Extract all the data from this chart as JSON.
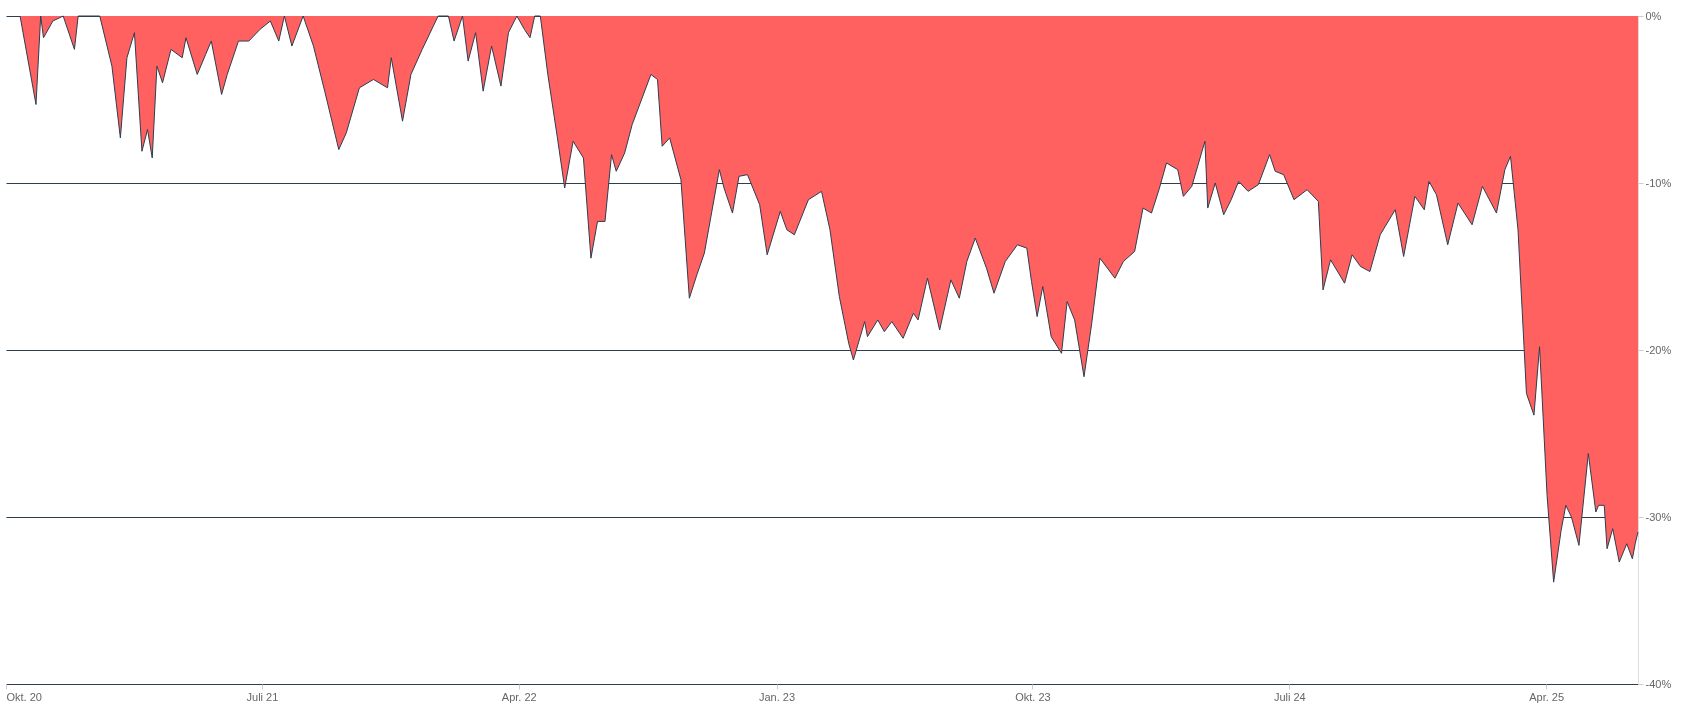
{
  "chart_data": {
    "type": "area",
    "xlim": [
      "2020-10-01",
      "2025-07-08"
    ],
    "ylim": [
      -40,
      0
    ],
    "xticks": [
      {
        "value": "2020-10-01",
        "label": "Okt. 20"
      },
      {
        "value": "2021-07-01",
        "label": "Juli 21"
      },
      {
        "value": "2022-04-01",
        "label": "Apr. 22"
      },
      {
        "value": "2023-01-01",
        "label": "Jan. 23"
      },
      {
        "value": "2023-10-01",
        "label": "Okt. 23"
      },
      {
        "value": "2024-07-01",
        "label": "Juli 24"
      },
      {
        "value": "2025-04-01",
        "label": "Apr. 25"
      }
    ],
    "yticks": [
      {
        "value": 0,
        "label": "0%"
      },
      {
        "value": -10,
        "label": "-10%"
      },
      {
        "value": -20,
        "label": "-20%"
      },
      {
        "value": -30,
        "label": "-30%"
      },
      {
        "value": -40,
        "label": "-40%"
      }
    ],
    "grid": "y",
    "legend": false,
    "x": [
      "2020-10-16",
      "2020-11-02",
      "2020-11-07",
      "2020-11-10",
      "2020-11-20",
      "2020-12-01",
      "2020-12-13",
      "2020-12-17",
      "2021-01-09",
      "2021-01-22",
      "2021-01-31",
      "2021-02-07",
      "2021-02-15",
      "2021-02-23",
      "2021-03-01",
      "2021-03-06",
      "2021-03-11",
      "2021-03-17",
      "2021-03-26",
      "2021-04-07",
      "2021-04-11",
      "2021-04-23",
      "2021-05-02",
      "2021-05-08",
      "2021-05-19",
      "2021-05-25",
      "2021-06-06",
      "2021-06-17",
      "2021-06-29",
      "2021-07-10",
      "2021-07-19",
      "2021-07-25",
      "2021-08-02",
      "2021-08-14",
      "2021-08-25",
      "2021-09-06",
      "2021-09-21",
      "2021-09-29",
      "2021-10-13",
      "2021-10-28",
      "2021-11-12",
      "2021-11-16",
      "2021-11-28",
      "2021-12-07",
      "2021-12-19",
      "2022-01-05",
      "2022-01-16",
      "2022-01-22",
      "2022-01-31",
      "2022-02-06",
      "2022-02-14",
      "2022-02-22",
      "2022-03-03",
      "2022-03-13",
      "2022-03-21",
      "2022-03-30",
      "2022-04-07",
      "2022-04-13",
      "2022-04-18",
      "2022-04-24",
      "2022-05-02",
      "2022-05-12",
      "2022-05-20",
      "2022-05-29",
      "2022-06-09",
      "2022-06-17",
      "2022-06-24",
      "2022-07-02",
      "2022-07-09",
      "2022-07-14",
      "2022-07-23",
      "2022-07-31",
      "2022-08-20",
      "2022-08-27",
      "2022-09-01",
      "2022-09-09",
      "2022-09-21",
      "2022-09-30",
      "2022-10-08",
      "2022-10-16",
      "2022-11-01",
      "2022-11-06",
      "2022-11-15",
      "2022-11-22",
      "2022-12-01",
      "2022-12-14",
      "2022-12-22",
      "2023-01-05",
      "2023-01-12",
      "2023-01-20",
      "2023-02-04",
      "2023-02-18",
      "2023-02-27",
      "2023-03-09",
      "2023-03-19",
      "2023-03-24",
      "2023-04-05",
      "2023-04-08",
      "2023-04-19",
      "2023-04-26",
      "2023-05-04",
      "2023-05-16",
      "2023-05-27",
      "2023-06-01",
      "2023-06-11",
      "2023-06-24",
      "2023-07-06",
      "2023-07-15",
      "2023-07-23",
      "2023-08-01",
      "2023-08-13",
      "2023-08-21",
      "2023-09-02",
      "2023-09-15",
      "2023-09-25",
      "2023-09-30",
      "2023-10-06",
      "2023-10-12",
      "2023-10-21",
      "2023-11-01",
      "2023-11-07",
      "2023-11-15",
      "2023-11-25",
      "2023-12-03",
      "2023-12-12",
      "2023-12-28",
      "2024-01-06",
      "2024-01-18",
      "2024-01-27",
      "2024-02-05",
      "2024-02-13",
      "2024-02-21",
      "2024-03-04",
      "2024-03-10",
      "2024-03-19",
      "2024-04-02",
      "2024-04-05",
      "2024-04-13",
      "2024-04-22",
      "2024-04-30",
      "2024-05-08",
      "2024-05-18",
      "2024-05-29",
      "2024-06-10",
      "2024-06-16",
      "2024-06-25",
      "2024-07-06",
      "2024-07-20",
      "2024-08-01",
      "2024-08-06",
      "2024-08-14",
      "2024-08-29",
      "2024-09-06",
      "2024-09-15",
      "2024-09-25",
      "2024-10-06",
      "2024-10-22",
      "2024-10-31",
      "2024-11-12",
      "2024-11-22",
      "2024-11-27",
      "2024-12-05",
      "2024-12-17",
      "2024-12-28",
      "2025-01-12",
      "2025-01-23",
      "2025-02-07",
      "2025-02-16",
      "2025-02-22",
      "2025-03-02",
      "2025-03-11",
      "2025-03-19",
      "2025-03-25",
      "2025-04-02",
      "2025-04-09",
      "2025-04-17",
      "2025-04-22",
      "2025-04-28",
      "2025-05-06",
      "2025-05-16",
      "2025-05-24",
      "2025-05-27",
      "2025-06-02",
      "2025-06-05",
      "2025-06-11",
      "2025-06-18",
      "2025-06-26",
      "2025-07-02",
      "2025-07-05",
      "2025-07-08"
    ],
    "series": [
      {
        "color": "#ff6161",
        "values": [
          0,
          -5.3,
          0,
          -1.3,
          -0.3,
          0,
          -2,
          0,
          0,
          -3,
          -7.3,
          -2.5,
          -1,
          -8.1,
          -6.8,
          -8.5,
          -3,
          -4,
          -2,
          -2.5,
          -1.3,
          -3.5,
          -2.3,
          -1.5,
          -4.7,
          -3.5,
          -1.5,
          -1.5,
          -0.8,
          -0.3,
          -1.5,
          0,
          -1.8,
          0,
          -1.8,
          -4.5,
          -8,
          -7,
          -4.3,
          -3.8,
          -4.3,
          -2.5,
          -6.3,
          -3.5,
          -2,
          0,
          0,
          -1.5,
          0,
          -2.7,
          -1,
          -4.5,
          -1.8,
          -4.2,
          -1,
          0,
          -0.8,
          -1.3,
          0,
          0,
          -3.5,
          -7.2,
          -10.3,
          -7.5,
          -8.5,
          -14.5,
          -12.3,
          -12.3,
          -8.3,
          -9.3,
          -8.2,
          -6.5,
          -3.5,
          -3.8,
          -7.8,
          -7.3,
          -9.8,
          -16.9,
          -15.5,
          -14.2,
          -9.2,
          -10.3,
          -11.8,
          -9.6,
          -9.5,
          -11.3,
          -14.3,
          -11.7,
          -12.8,
          -13.1,
          -11,
          -10.5,
          -12.8,
          -16.8,
          -19.6,
          -20.6,
          -18.3,
          -19.2,
          -18.2,
          -18.9,
          -18.3,
          -19.3,
          -17.8,
          -18.2,
          -15.7,
          -18.8,
          -15.8,
          -16.9,
          -14.7,
          -13.3,
          -15.1,
          -16.6,
          -14.7,
          -13.7,
          -13.9,
          -15.9,
          -18,
          -16.2,
          -19.2,
          -20.2,
          -17.1,
          -18.2,
          -21.6,
          -18.5,
          -14.5,
          -15.7,
          -14.7,
          -14.1,
          -11.5,
          -11.8,
          -10.4,
          -8.8,
          -9.2,
          -10.8,
          -10.2,
          -7.5,
          -11.5,
          -10,
          -11.9,
          -11,
          -9.9,
          -10.5,
          -10.1,
          -8.3,
          -9.3,
          -9.5,
          -11,
          -10.4,
          -11.1,
          -16.4,
          -14.6,
          -16,
          -14.3,
          -15,
          -15.3,
          -13.1,
          -11.6,
          -14.4,
          -10.8,
          -11.6,
          -9.9,
          -10.7,
          -13.7,
          -11.2,
          -12.5,
          -10.2,
          -11.8,
          -9.2,
          -8.4,
          -12.8,
          -22.6,
          -23.9,
          -19.8,
          -28.7,
          -33.9,
          -30.8,
          -29.3,
          -30,
          -31.7,
          -26.2,
          -29.7,
          -29.3,
          -29.3,
          -31.9,
          -30.7,
          -32.7,
          -31.6,
          -32.5,
          -31.6,
          -30.9
        ]
      }
    ]
  }
}
